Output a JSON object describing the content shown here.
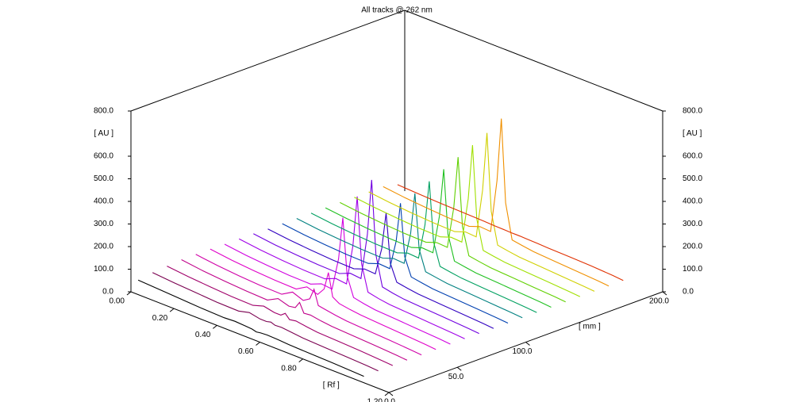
{
  "chart_data": {
    "type": "line3d",
    "title": "All tracks @ 262 nm",
    "x_label": "[ Rf ]",
    "z_label": "[ AU ]",
    "depth_label": "[ mm ]",
    "xlim": [
      0,
      1.2
    ],
    "xticks": [
      {
        "value": 0,
        "label": "0.00"
      },
      {
        "value": 0.2,
        "label": "0.20"
      },
      {
        "value": 0.4,
        "label": "0.40"
      },
      {
        "value": 0.6,
        "label": "0.60"
      },
      {
        "value": 0.8,
        "label": "0.80"
      },
      {
        "value": 1.2,
        "label": "1.20"
      }
    ],
    "depthlim": [
      0,
      200
    ],
    "depthticks": [
      {
        "value": 0,
        "label": "0.0"
      },
      {
        "value": 50,
        "label": "50.0"
      },
      {
        "value": 100,
        "label": "100.0"
      },
      {
        "value": 200,
        "label": "200.0"
      }
    ],
    "zlim": [
      0,
      800
    ],
    "zticks": [
      {
        "value": 0,
        "label": "0.0"
      },
      {
        "value": 100,
        "label": "100.0"
      },
      {
        "value": 200,
        "label": "200.0"
      },
      {
        "value": 300,
        "label": "300.0"
      },
      {
        "value": 400,
        "label": "400.0"
      },
      {
        "value": 500,
        "label": "500.0"
      },
      {
        "value": 600,
        "label": "600.0"
      },
      {
        "value": 800,
        "label": "800.0"
      }
    ],
    "x": [
      0,
      0.1,
      0.2,
      0.3,
      0.4,
      0.45,
      0.5,
      0.53,
      0.55,
      0.57,
      0.6,
      0.65,
      0.7,
      0.8,
      0.9,
      1.0,
      1.05
    ],
    "series": [
      {
        "color": "#000000",
        "values": [
          40,
          35,
          30,
          25,
          22,
          25,
          22,
          20,
          15,
          18,
          20,
          18,
          15,
          12,
          10,
          6,
          4
        ]
      },
      {
        "color": "#7a0050",
        "values": [
          50,
          42,
          36,
          30,
          28,
          40,
          30,
          30,
          35,
          28,
          30,
          25,
          20,
          16,
          12,
          8,
          5
        ]
      },
      {
        "color": "#a0006a",
        "values": [
          55,
          45,
          38,
          32,
          30,
          45,
          35,
          35,
          50,
          30,
          35,
          28,
          22,
          18,
          14,
          8,
          5
        ]
      },
      {
        "color": "#c0008a",
        "values": [
          60,
          48,
          40,
          34,
          30,
          55,
          40,
          45,
          75,
          35,
          38,
          30,
          25,
          20,
          15,
          9,
          5
        ]
      },
      {
        "color": "#d000a8",
        "values": [
          60,
          48,
          40,
          34,
          32,
          60,
          42,
          60,
          110,
          45,
          40,
          32,
          26,
          20,
          15,
          9,
          5
        ]
      },
      {
        "color": "#e000c8",
        "values": [
          60,
          48,
          40,
          34,
          32,
          60,
          45,
          80,
          160,
          60,
          42,
          34,
          28,
          22,
          16,
          10,
          6
        ]
      },
      {
        "color": "#d000e0",
        "values": [
          58,
          46,
          38,
          32,
          30,
          50,
          45,
          190,
          380,
          130,
          45,
          35,
          28,
          22,
          16,
          10,
          6
        ]
      },
      {
        "color": "#a000e8",
        "values": [
          58,
          46,
          38,
          32,
          30,
          50,
          45,
          225,
          450,
          160,
          45,
          35,
          28,
          22,
          16,
          10,
          6
        ]
      },
      {
        "color": "#7000e0",
        "values": [
          58,
          46,
          38,
          32,
          30,
          50,
          45,
          250,
          500,
          175,
          45,
          35,
          28,
          22,
          16,
          10,
          6
        ]
      },
      {
        "color": "#3000c0",
        "values": [
          55,
          44,
          36,
          30,
          28,
          45,
          42,
          165,
          330,
          115,
          42,
          34,
          27,
          21,
          15,
          9,
          5
        ]
      },
      {
        "color": "#0040b0",
        "values": [
          55,
          44,
          36,
          30,
          28,
          45,
          42,
          175,
          350,
          120,
          42,
          34,
          27,
          21,
          15,
          9,
          5
        ]
      },
      {
        "color": "#008080",
        "values": [
          55,
          44,
          36,
          30,
          28,
          45,
          42,
          185,
          370,
          130,
          42,
          34,
          27,
          21,
          15,
          9,
          5
        ]
      },
      {
        "color": "#00a060",
        "values": [
          55,
          44,
          36,
          30,
          28,
          45,
          42,
          200,
          400,
          140,
          42,
          34,
          27,
          21,
          15,
          9,
          5
        ]
      },
      {
        "color": "#20c020",
        "values": [
          55,
          44,
          36,
          30,
          28,
          45,
          42,
          215,
          430,
          150,
          42,
          34,
          27,
          21,
          15,
          9,
          5
        ]
      },
      {
        "color": "#60d000",
        "values": [
          55,
          44,
          36,
          30,
          28,
          45,
          42,
          230,
          460,
          160,
          42,
          34,
          27,
          21,
          15,
          9,
          5
        ]
      },
      {
        "color": "#a0e000",
        "values": [
          55,
          44,
          36,
          30,
          28,
          45,
          42,
          245,
          490,
          170,
          42,
          34,
          27,
          21,
          15,
          9,
          5
        ]
      },
      {
        "color": "#d0d000",
        "values": [
          55,
          44,
          36,
          30,
          28,
          45,
          42,
          260,
          520,
          180,
          42,
          34,
          27,
          21,
          15,
          9,
          5
        ]
      },
      {
        "color": "#f09000",
        "values": [
          55,
          44,
          36,
          30,
          28,
          45,
          42,
          280,
          560,
          195,
          42,
          34,
          27,
          21,
          15,
          9,
          5
        ]
      },
      {
        "color": "#e03000",
        "values": [
          40,
          36,
          32,
          30,
          28,
          26,
          25,
          24,
          24,
          24,
          23,
          22,
          20,
          18,
          15,
          10,
          6
        ]
      }
    ]
  }
}
